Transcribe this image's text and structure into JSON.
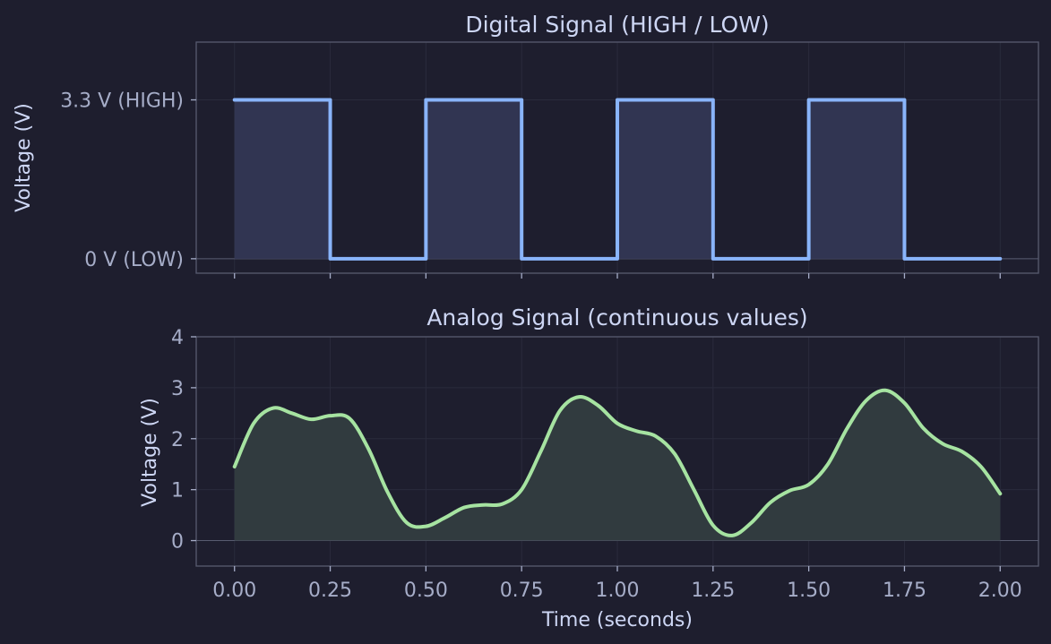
{
  "colors": {
    "background": "#1e1e2e",
    "axes_frame": "#585b70",
    "grid": "#2a2b3c",
    "text": "#cdd6f4",
    "tick_text": "#a6adc8",
    "digital_line": "#89b4fa",
    "digital_fill": "#313552",
    "analog_line": "#a6e3a1",
    "analog_fill": "#313b3f"
  },
  "chart_data": [
    {
      "type": "line",
      "title": "Digital Signal (HIGH / LOW)",
      "xlabel": "",
      "ylabel": "Voltage (V)",
      "xlim": [
        -0.1,
        2.1
      ],
      "ylim": [
        -0.3,
        4.5
      ],
      "yticks": [
        {
          "value": 0,
          "label": "0 V (LOW)"
        },
        {
          "value": 3.3,
          "label": "3.3 V (HIGH)"
        }
      ],
      "xticks": [
        0,
        0.25,
        0.5,
        0.75,
        1.0,
        1.25,
        1.5,
        1.75,
        2.0
      ],
      "xtick_labels_visible": false,
      "grid": true,
      "fill_under": true,
      "series": [
        {
          "x": [
            0,
            0.25,
            0.25,
            0.5,
            0.5,
            0.75,
            0.75,
            1.0,
            1.0,
            1.25,
            1.25,
            1.5,
            1.5,
            1.75,
            1.75,
            2.0
          ],
          "y": [
            3.3,
            3.3,
            0,
            0,
            3.3,
            3.3,
            0,
            0,
            3.3,
            3.3,
            0,
            0,
            3.3,
            3.3,
            0,
            0
          ]
        }
      ]
    },
    {
      "type": "line",
      "title": "Analog Signal (continuous values)",
      "xlabel": "Time (seconds)",
      "ylabel": "Voltage (V)",
      "xlim": [
        -0.1,
        2.1
      ],
      "ylim": [
        -0.5,
        4.0
      ],
      "yticks": [
        {
          "value": 0,
          "label": "0"
        },
        {
          "value": 1,
          "label": "1"
        },
        {
          "value": 2,
          "label": "2"
        },
        {
          "value": 3,
          "label": "3"
        },
        {
          "value": 4,
          "label": "4"
        }
      ],
      "xticks": [
        0,
        0.25,
        0.5,
        0.75,
        1.0,
        1.25,
        1.5,
        1.75,
        2.0
      ],
      "xtick_labels": [
        "0.00",
        "0.25",
        "0.50",
        "0.75",
        "1.00",
        "1.25",
        "1.50",
        "1.75",
        "2.00"
      ],
      "grid": true,
      "fill_under": true,
      "series": [
        {
          "x": [
            0,
            0.05,
            0.1,
            0.15,
            0.2,
            0.25,
            0.3,
            0.35,
            0.4,
            0.45,
            0.5,
            0.55,
            0.6,
            0.65,
            0.7,
            0.75,
            0.8,
            0.85,
            0.9,
            0.95,
            1.0,
            1.05,
            1.1,
            1.15,
            1.2,
            1.25,
            1.3,
            1.35,
            1.4,
            1.45,
            1.5,
            1.55,
            1.6,
            1.65,
            1.7,
            1.75,
            1.8,
            1.85,
            1.9,
            1.95,
            2.0
          ],
          "y": [
            1.45,
            2.3,
            2.6,
            2.5,
            2.38,
            2.45,
            2.4,
            1.8,
            0.95,
            0.35,
            0.28,
            0.45,
            0.65,
            0.7,
            0.72,
            1.0,
            1.75,
            2.55,
            2.82,
            2.65,
            2.3,
            2.15,
            2.05,
            1.7,
            1.0,
            0.3,
            0.1,
            0.35,
            0.75,
            0.98,
            1.1,
            1.5,
            2.2,
            2.75,
            2.95,
            2.7,
            2.2,
            1.9,
            1.75,
            1.45,
            0.92
          ]
        }
      ]
    }
  ]
}
